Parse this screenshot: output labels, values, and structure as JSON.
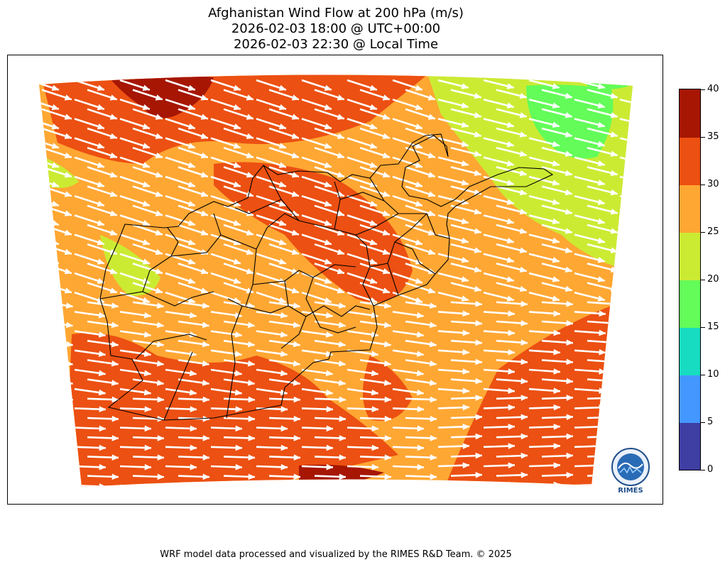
{
  "title": {
    "line1": "Afghanistan Wind Flow at 200 hPa (m/s)",
    "line2": "2026-02-03 18:00 @ UTC+00:00",
    "line3": "2026-02-03 22:30 @ Local Time"
  },
  "colorbar": {
    "ticks": [
      "0",
      "5",
      "10",
      "15",
      "20",
      "25",
      "30",
      "35",
      "40"
    ],
    "colors": [
      "#3f3ea3",
      "#4497ff",
      "#18dcc2",
      "#63fc59",
      "#cbeb33",
      "#ffa733",
      "#ec5012",
      "#a61603"
    ]
  },
  "logo": {
    "text": "RIMES"
  },
  "footer": "WRF model data processed and visualized by the RIMES R&D Team. © 2025"
}
